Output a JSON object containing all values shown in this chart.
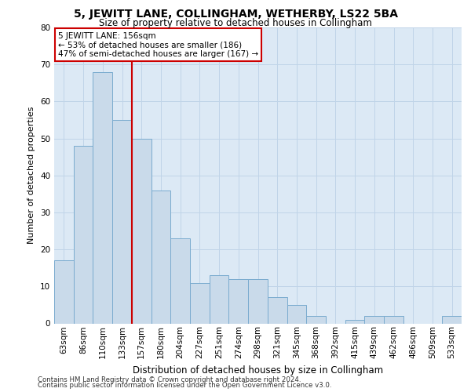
{
  "title1": "5, JEWITT LANE, COLLINGHAM, WETHERBY, LS22 5BA",
  "title2": "Size of property relative to detached houses in Collingham",
  "xlabel": "Distribution of detached houses by size in Collingham",
  "ylabel": "Number of detached properties",
  "categories": [
    "63sqm",
    "86sqm",
    "110sqm",
    "133sqm",
    "157sqm",
    "180sqm",
    "204sqm",
    "227sqm",
    "251sqm",
    "274sqm",
    "298sqm",
    "321sqm",
    "345sqm",
    "368sqm",
    "392sqm",
    "415sqm",
    "439sqm",
    "462sqm",
    "486sqm",
    "509sqm",
    "533sqm"
  ],
  "values": [
    17,
    48,
    68,
    55,
    50,
    36,
    23,
    11,
    13,
    12,
    12,
    7,
    5,
    2,
    0,
    1,
    2,
    2,
    0,
    0,
    2
  ],
  "bar_color": "#c9daea",
  "bar_edge_color": "#7aabcf",
  "vline_x": 3.5,
  "vline_color": "#cc0000",
  "annotation_text": "5 JEWITT LANE: 156sqm\n← 53% of detached houses are smaller (186)\n47% of semi-detached houses are larger (167) →",
  "annotation_box_color": "#ffffff",
  "annotation_box_edge": "#cc0000",
  "grid_color": "#c0d4e8",
  "background_color": "#dce9f5",
  "footer1": "Contains HM Land Registry data © Crown copyright and database right 2024.",
  "footer2": "Contains public sector information licensed under the Open Government Licence v3.0.",
  "ylim": [
    0,
    80
  ],
  "yticks": [
    0,
    10,
    20,
    30,
    40,
    50,
    60,
    70,
    80
  ],
  "title1_fontsize": 10,
  "title2_fontsize": 8.5,
  "xlabel_fontsize": 8.5,
  "ylabel_fontsize": 8,
  "annot_fontsize": 7.5,
  "tick_fontsize": 7.5,
  "footer_fontsize": 6.2
}
